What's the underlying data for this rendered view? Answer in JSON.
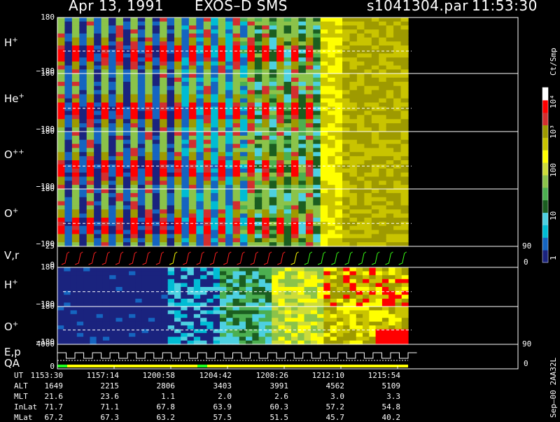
{
  "header": {
    "date": "Apr 13, 1991",
    "instrument": "EXOS–D SMS",
    "file": "s1041304.par",
    "time": "11:53:30"
  },
  "panels": [
    {
      "id": "h_plus",
      "label": "H",
      "ion": "+",
      "ticks": [
        "180",
        "−180"
      ]
    },
    {
      "id": "he_plus",
      "label": "He",
      "ion": "+",
      "ticks": [
        "180",
        "−180"
      ]
    },
    {
      "id": "o_pp",
      "label": "O",
      "ion": "++",
      "ticks": [
        "180",
        "−180"
      ]
    },
    {
      "id": "o_plus",
      "label": "O",
      "ion": "+",
      "ticks": [
        "180",
        "−180"
      ]
    },
    {
      "id": "vr",
      "label": "V,r",
      "ion": "",
      "ticks": [
        "25",
        "0"
      ],
      "right_ticks": [
        "90",
        "0"
      ]
    },
    {
      "id": "h_plus_2",
      "label": "H",
      "ion": "+",
      "ticks": [
        "180",
        "−180"
      ]
    },
    {
      "id": "o_plus_2",
      "label": "O",
      "ion": "+",
      "ticks": [
        "180",
        "−180"
      ]
    },
    {
      "id": "ep",
      "label": "E,p",
      "label2": "QA",
      "ion": "",
      "ticks": [
        "4000",
        "0"
      ],
      "right_ticks": [
        "90",
        "0"
      ]
    }
  ],
  "colorbar": {
    "unit": "Ct/Smp",
    "ticks": [
      "10⁴",
      "10³",
      "100",
      "10",
      "1"
    ]
  },
  "footer": {
    "rows": [
      {
        "label": "UT",
        "values": [
          "1153:30",
          "1157:14",
          "1200:58",
          "1204:42",
          "1208:26",
          "1212:10",
          "1215:54"
        ]
      },
      {
        "label": "ALT",
        "values": [
          "1649",
          "2215",
          "2806",
          "3403",
          "3991",
          "4562",
          "5109"
        ]
      },
      {
        "label": "MLT",
        "values": [
          "21.6",
          "23.6",
          "1.1",
          "2.0",
          "2.6",
          "3.0",
          "3.3"
        ]
      },
      {
        "label": "InLat",
        "values": [
          "71.7",
          "71.1",
          "67.8",
          "63.9",
          "60.3",
          "57.2",
          "54.8"
        ]
      },
      {
        "label": "MLat",
        "values": [
          "67.2",
          "67.3",
          "63.2",
          "57.5",
          "51.5",
          "45.7",
          "40.2"
        ]
      }
    ],
    "side_text": "Sep–00  2AA32L"
  },
  "colors": {
    "scale": [
      "#1a237e",
      "#1565c0",
      "#00bcd4",
      "#4dd0e1",
      "#1b5e20",
      "#4caf50",
      "#8bc34a",
      "#cddc39",
      "#ffff00",
      "#c9c400",
      "#9e9a00",
      "#d32f2f",
      "#ff0000",
      "#ffffff"
    ],
    "trace_red": "#ff2020",
    "trace_green": "#39ff14",
    "trace_yellow": "#ffff00",
    "qa_bar": "#ffff00",
    "qa_bar_green": "#20ff20"
  },
  "chart_data": {
    "type": "heatmap",
    "title": "Apr 13, 1991  EXOS–D SMS",
    "x_ticks": [
      "1153:30",
      "1157:14",
      "1200:58",
      "1204:42",
      "1208:26",
      "1212:10",
      "1215:54"
    ],
    "colorbar_label": "Ct/Smp",
    "colorbar_scale": "log",
    "colorbar_range": [
      1,
      10000
    ]
  }
}
